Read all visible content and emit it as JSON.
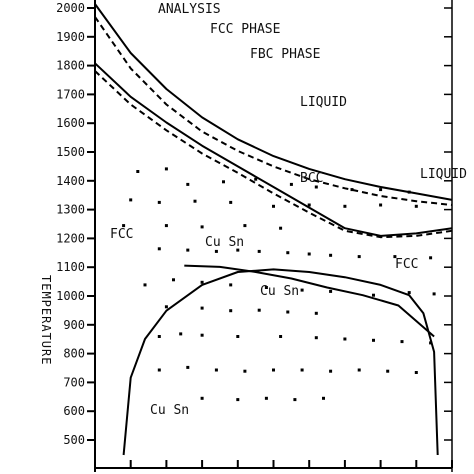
{
  "chart_data": {
    "type": "scatter",
    "title": "ANALYSIS",
    "xlabel": "",
    "ylabel": "TEMPERATURE",
    "ylim": [
      300,
      2050
    ],
    "xlim": [
      0,
      100
    ],
    "grid": false,
    "yticks": [
      "2000",
      "1900",
      "1800",
      "1700",
      "1600",
      "1500",
      "1400",
      "1300",
      "1200",
      "1100",
      "1000",
      "900",
      "800",
      "700",
      "600",
      "500"
    ],
    "region_labels": [
      "FCC PHASE",
      "FBC PHASE",
      "LIQUID",
      "BCC",
      "FCC",
      "Cu Sn",
      "LIQUID",
      "FCC",
      "Cu Sn",
      "Cu Sn"
    ],
    "series": [
      {
        "kind": "curve",
        "style": "solid",
        "x": [
          0,
          10,
          20,
          30,
          40,
          50,
          60,
          70,
          80,
          90,
          100
        ],
        "y": [
          2050,
          1860,
          1720,
          1610,
          1525,
          1460,
          1410,
          1370,
          1340,
          1315,
          1290
        ]
      },
      {
        "kind": "curve",
        "style": "dashed",
        "x": [
          0,
          10,
          20,
          30,
          40,
          50,
          60,
          70,
          80,
          90,
          100
        ],
        "y": [
          2000,
          1800,
          1660,
          1555,
          1480,
          1420,
          1370,
          1335,
          1305,
          1285,
          1270
        ]
      },
      {
        "kind": "curve",
        "style": "solid",
        "x": [
          0,
          10,
          20,
          30,
          40,
          50,
          60,
          70,
          80,
          90,
          100
        ],
        "y": [
          1820,
          1690,
          1590,
          1500,
          1420,
          1340,
          1260,
          1180,
          1150,
          1160,
          1180
        ]
      },
      {
        "kind": "curve",
        "style": "dashed",
        "x": [
          0,
          10,
          20,
          30,
          40,
          50,
          60,
          70,
          80,
          90,
          100
        ],
        "y": [
          1790,
          1660,
          1560,
          1470,
          1395,
          1315,
          1240,
          1170,
          1145,
          1150,
          1170
        ]
      },
      {
        "kind": "curve",
        "style": "solid",
        "x": [
          25,
          35,
          45,
          55,
          65,
          75,
          85,
          95
        ],
        "y": [
          1035,
          1030,
          1010,
          985,
          950,
          920,
          880,
          760
        ]
      },
      {
        "kind": "curve",
        "style": "solid",
        "x": [
          8,
          10,
          14,
          20,
          30,
          40,
          50,
          60,
          70,
          80,
          88,
          92,
          95,
          96
        ],
        "y": [
          300,
          600,
          750,
          860,
          960,
          1010,
          1020,
          1010,
          990,
          960,
          920,
          850,
          700,
          300
        ]
      }
    ],
    "points": [
      {
        "x": 12,
        "y": 1400
      },
      {
        "x": 20,
        "y": 1410
      },
      {
        "x": 26,
        "y": 1350
      },
      {
        "x": 36,
        "y": 1360
      },
      {
        "x": 45,
        "y": 1370
      },
      {
        "x": 55,
        "y": 1350
      },
      {
        "x": 62,
        "y": 1340
      },
      {
        "x": 72,
        "y": 1330
      },
      {
        "x": 80,
        "y": 1330
      },
      {
        "x": 88,
        "y": 1320
      },
      {
        "x": 10,
        "y": 1290
      },
      {
        "x": 18,
        "y": 1280
      },
      {
        "x": 28,
        "y": 1285
      },
      {
        "x": 38,
        "y": 1280
      },
      {
        "x": 50,
        "y": 1265
      },
      {
        "x": 60,
        "y": 1270
      },
      {
        "x": 70,
        "y": 1265
      },
      {
        "x": 80,
        "y": 1270
      },
      {
        "x": 90,
        "y": 1265
      },
      {
        "x": 8,
        "y": 1190
      },
      {
        "x": 20,
        "y": 1190
      },
      {
        "x": 30,
        "y": 1185
      },
      {
        "x": 42,
        "y": 1190
      },
      {
        "x": 52,
        "y": 1180
      },
      {
        "x": 18,
        "y": 1100
      },
      {
        "x": 26,
        "y": 1095
      },
      {
        "x": 34,
        "y": 1090
      },
      {
        "x": 40,
        "y": 1095
      },
      {
        "x": 46,
        "y": 1090
      },
      {
        "x": 54,
        "y": 1085
      },
      {
        "x": 60,
        "y": 1080
      },
      {
        "x": 66,
        "y": 1075
      },
      {
        "x": 74,
        "y": 1070
      },
      {
        "x": 84,
        "y": 1070
      },
      {
        "x": 94,
        "y": 1065
      },
      {
        "x": 14,
        "y": 960
      },
      {
        "x": 22,
        "y": 980
      },
      {
        "x": 30,
        "y": 970
      },
      {
        "x": 38,
        "y": 960
      },
      {
        "x": 48,
        "y": 950
      },
      {
        "x": 58,
        "y": 940
      },
      {
        "x": 66,
        "y": 935
      },
      {
        "x": 78,
        "y": 920
      },
      {
        "x": 88,
        "y": 930
      },
      {
        "x": 95,
        "y": 925
      },
      {
        "x": 20,
        "y": 875
      },
      {
        "x": 30,
        "y": 870
      },
      {
        "x": 38,
        "y": 860
      },
      {
        "x": 46,
        "y": 862
      },
      {
        "x": 54,
        "y": 855
      },
      {
        "x": 62,
        "y": 850
      },
      {
        "x": 18,
        "y": 760
      },
      {
        "x": 24,
        "y": 770
      },
      {
        "x": 30,
        "y": 765
      },
      {
        "x": 40,
        "y": 760
      },
      {
        "x": 52,
        "y": 760
      },
      {
        "x": 62,
        "y": 755
      },
      {
        "x": 70,
        "y": 750
      },
      {
        "x": 78,
        "y": 745
      },
      {
        "x": 86,
        "y": 740
      },
      {
        "x": 94,
        "y": 735
      },
      {
        "x": 18,
        "y": 630
      },
      {
        "x": 26,
        "y": 640
      },
      {
        "x": 34,
        "y": 630
      },
      {
        "x": 42,
        "y": 625
      },
      {
        "x": 50,
        "y": 630
      },
      {
        "x": 58,
        "y": 630
      },
      {
        "x": 66,
        "y": 625
      },
      {
        "x": 74,
        "y": 630
      },
      {
        "x": 82,
        "y": 625
      },
      {
        "x": 90,
        "y": 620
      },
      {
        "x": 30,
        "y": 520
      },
      {
        "x": 40,
        "y": 515
      },
      {
        "x": 48,
        "y": 520
      },
      {
        "x": 56,
        "y": 515
      },
      {
        "x": 64,
        "y": 520
      }
    ]
  }
}
